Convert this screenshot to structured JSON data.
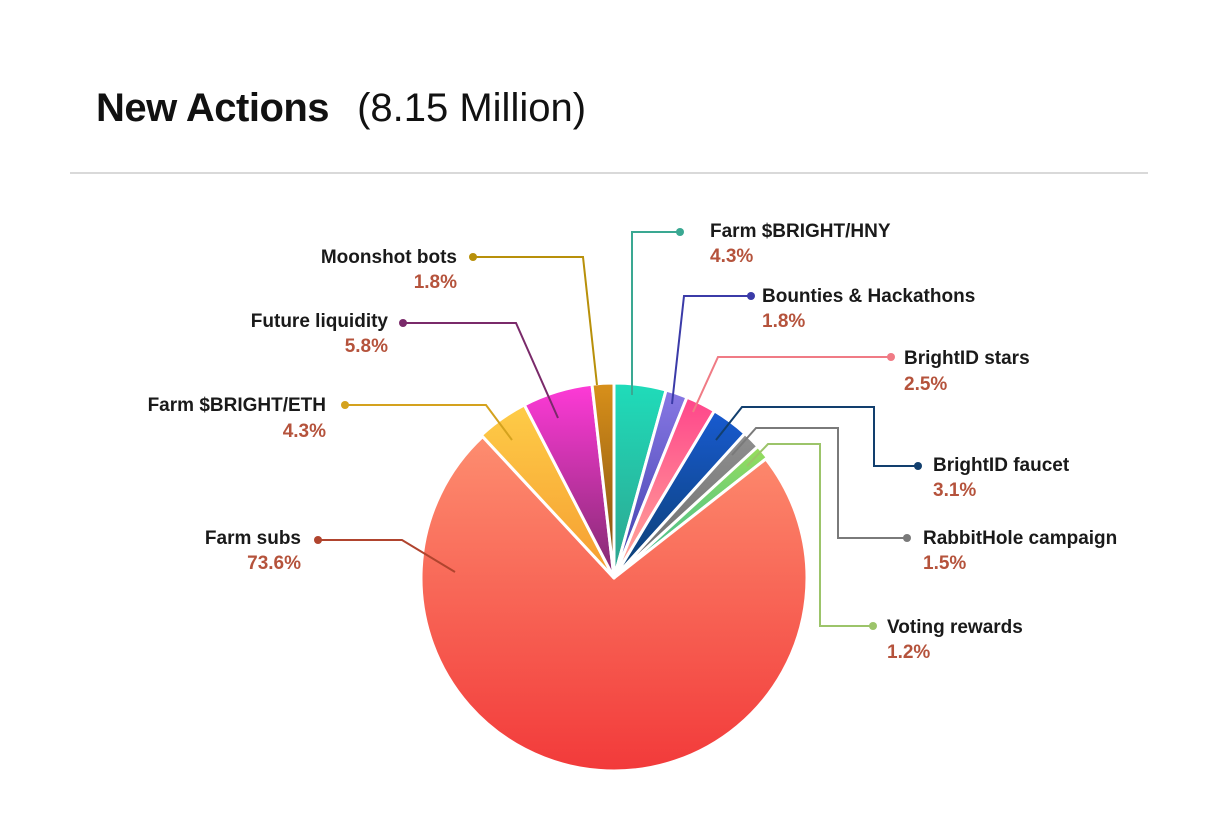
{
  "header": {
    "title": "New Actions",
    "subtitle": "(8.15 Million)"
  },
  "chart_data": {
    "type": "pie",
    "title": "New Actions",
    "subtitle": "(8.15 Million)",
    "value_unit": "%",
    "label_color": "#b5533c",
    "slices": [
      {
        "label": "Farm $BRIGHT/HNY",
        "value": 4.3,
        "pct_label": "4.3%",
        "color_top": "#1fdcba",
        "color_bottom": "#2fa08c",
        "leader_color": "#3aa892"
      },
      {
        "label": "Bounties & Hackathons",
        "value": 1.8,
        "pct_label": "1.8%",
        "color_top": "#8a7ae6",
        "color_bottom": "#3b3ba8",
        "leader_color": "#3b3ba8"
      },
      {
        "label": "BrightID stars",
        "value": 2.5,
        "pct_label": "2.5%",
        "color_top": "#ff3d8a",
        "color_bottom": "#ffb39a",
        "leader_color": "#f07b85"
      },
      {
        "label": "BrightID faucet",
        "value": 3.1,
        "pct_label": "3.1%",
        "color_top": "#1a5fe0",
        "color_bottom": "#0b3d6b",
        "leader_color": "#123f6e"
      },
      {
        "label": "RabbitHole campaign",
        "value": 1.5,
        "pct_label": "1.5%",
        "color_top": "#9a9a9a",
        "color_bottom": "#6a6a6a",
        "leader_color": "#7a7a7a"
      },
      {
        "label": "Voting rewards",
        "value": 1.2,
        "pct_label": "1.2%",
        "color_top": "#c6f03c",
        "color_bottom": "#2fb5a0",
        "leader_color": "#9cc46a"
      },
      {
        "label": "Farm subs",
        "value": 73.6,
        "pct_label": "73.6%",
        "color_top": "#ff9a78",
        "color_bottom": "#f23a3a",
        "leader_color": "#b0442e"
      },
      {
        "label": "Farm $BRIGHT/ETH",
        "value": 4.3,
        "pct_label": "4.3%",
        "color_top": "#ffd24a",
        "color_bottom": "#f59a30",
        "leader_color": "#d4a21e"
      },
      {
        "label": "Future liquidity",
        "value": 5.8,
        "pct_label": "5.8%",
        "color_top": "#ff3ad8",
        "color_bottom": "#7a2a6a",
        "leader_color": "#7a2a6a"
      },
      {
        "label": "Moonshot bots",
        "value": 1.8,
        "pct_label": "1.8%",
        "color_top": "#d8901a",
        "color_bottom": "#7a4a10",
        "leader_color": "#b8900a"
      }
    ]
  }
}
